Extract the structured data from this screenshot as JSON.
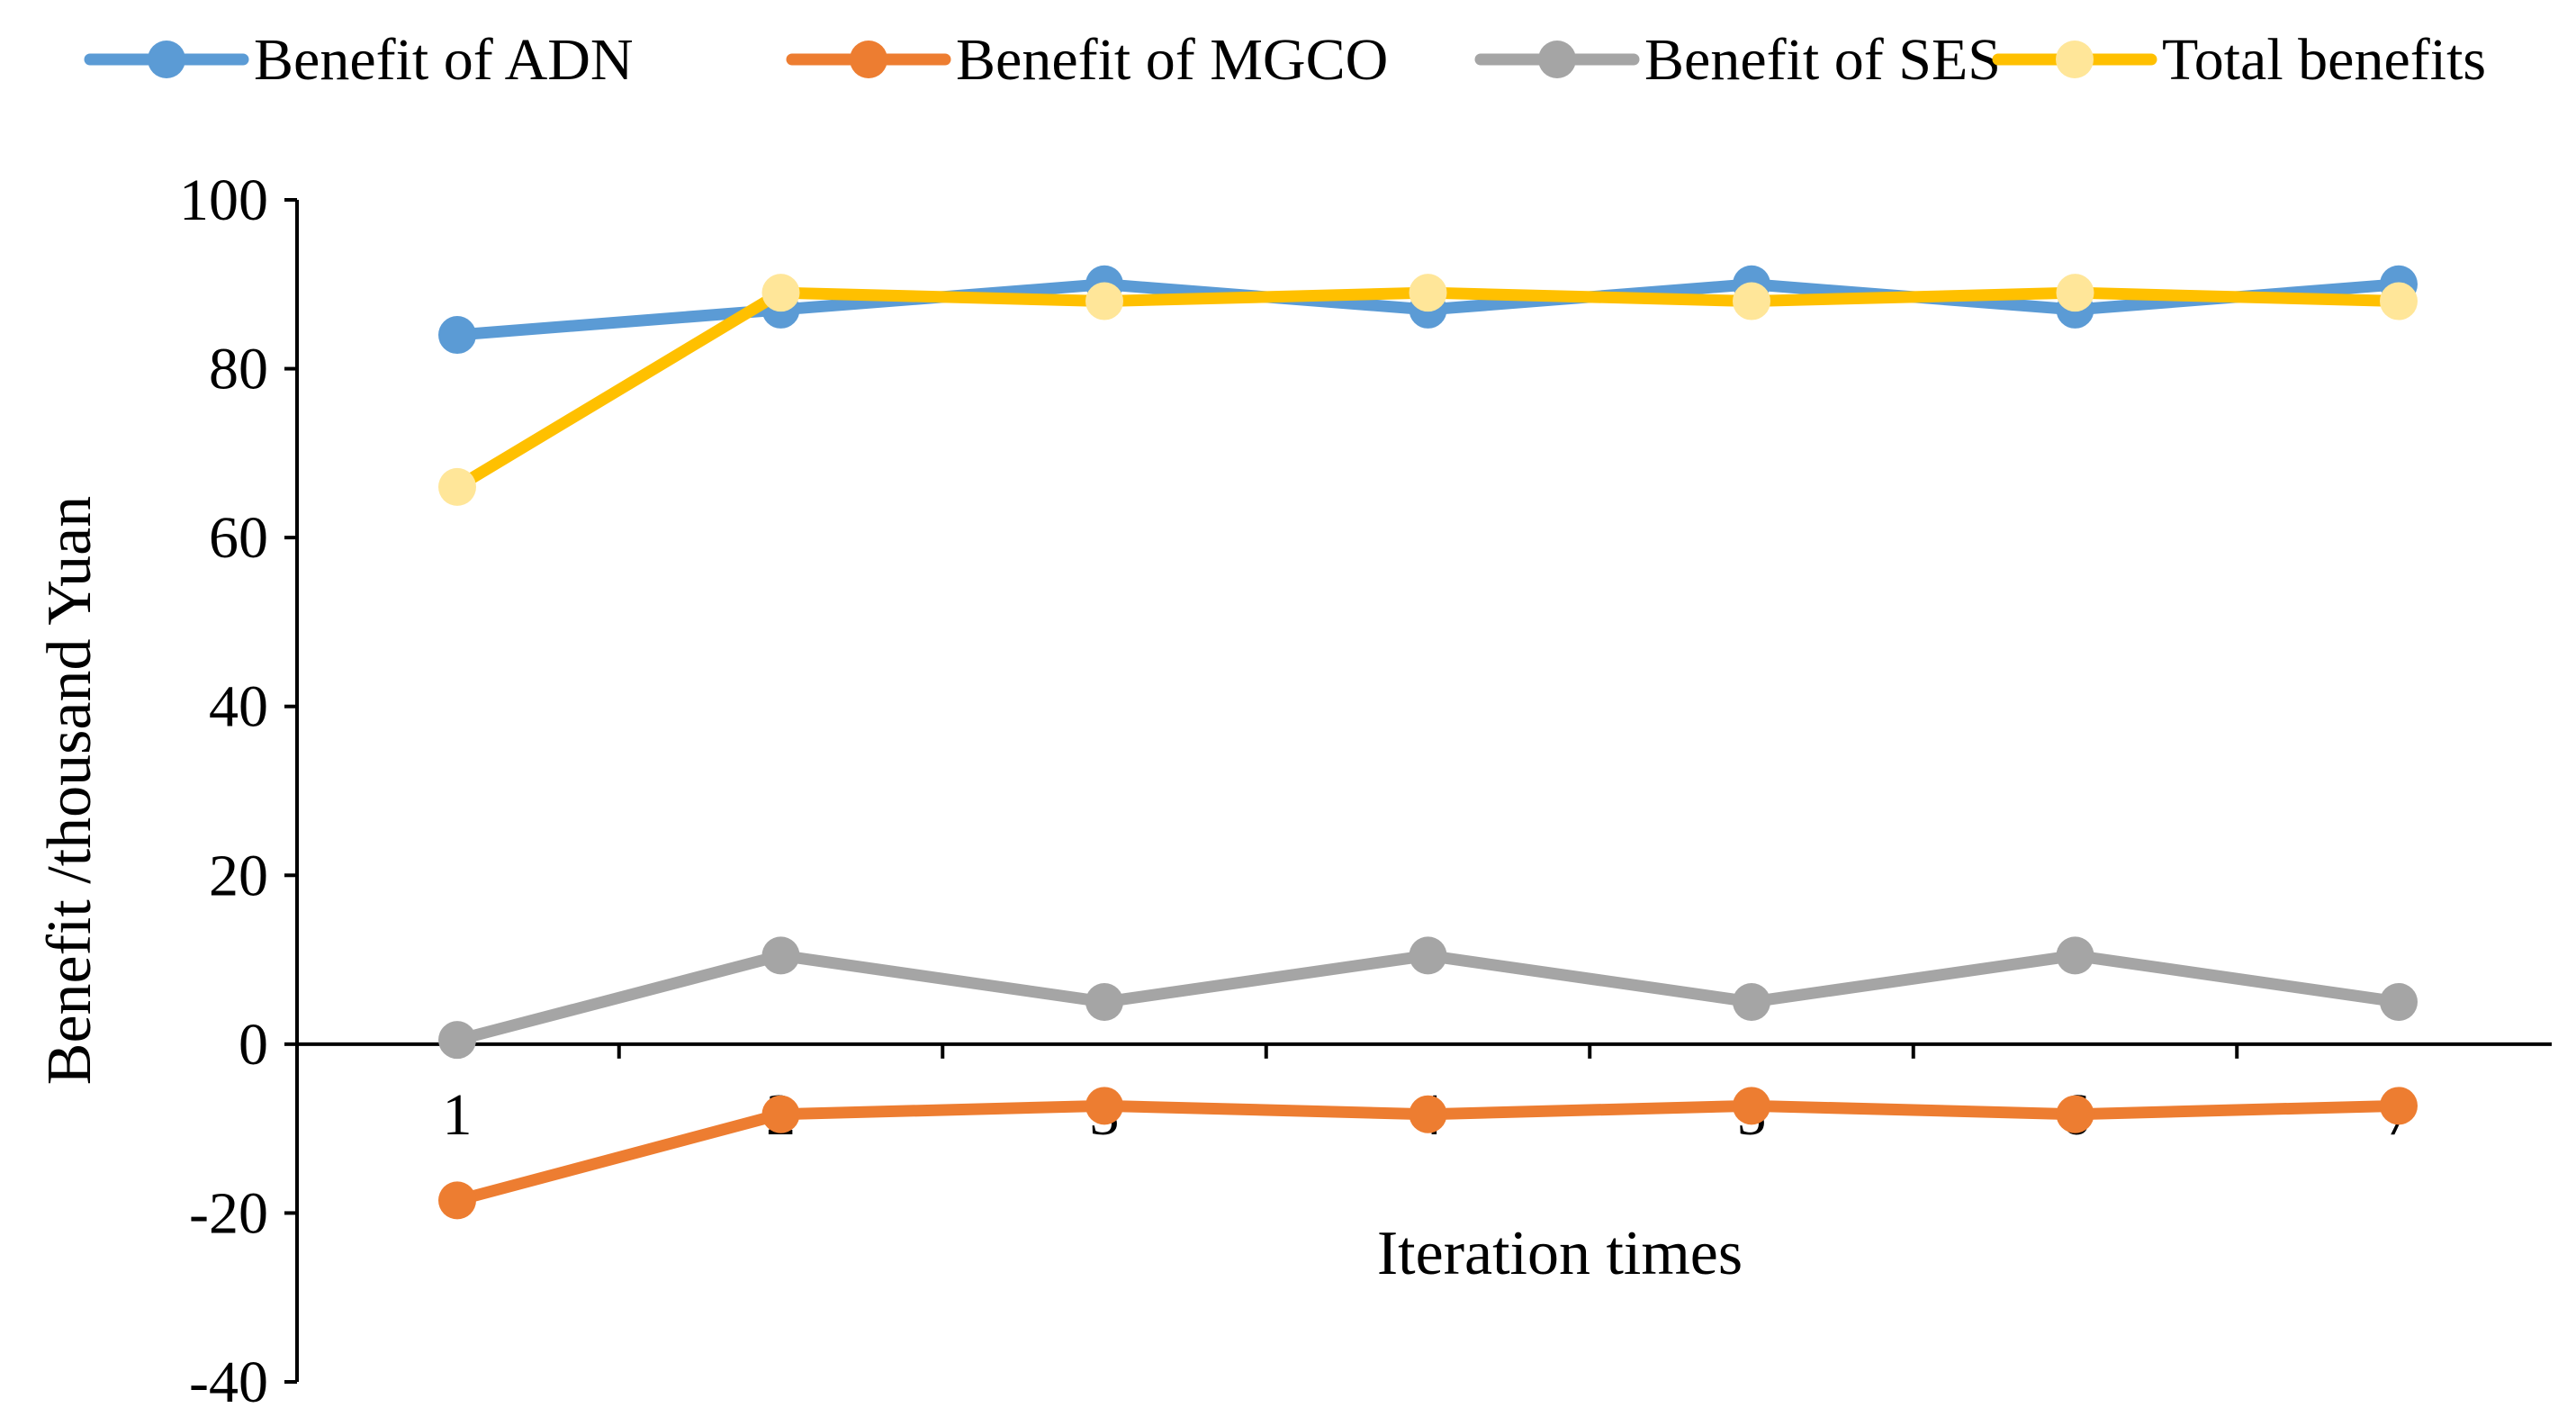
{
  "chart_data": {
    "type": "line",
    "title": "",
    "xlabel": "Iteration times",
    "ylabel": "Benefit /thousand Yuan",
    "categories": [
      "1",
      "2",
      "3",
      "4",
      "5",
      "6",
      "7"
    ],
    "ylim": [
      -40,
      100
    ],
    "yticks": [
      -40,
      -20,
      0,
      20,
      40,
      60,
      80,
      100
    ],
    "ytick_labels": [
      "-40",
      "-20",
      "0",
      "20",
      "40",
      "60",
      "80",
      "100"
    ],
    "grid": false,
    "legend_position": "top",
    "series": [
      {
        "name": "Benefit of ADN",
        "color": "#5B9BD5",
        "marker_color": "#5B9BD5",
        "values": [
          84.0,
          87.0,
          90.0,
          87.0,
          90.0,
          87.0,
          90.0
        ]
      },
      {
        "name": "Benefit of MGCO",
        "color": "#ED7D31",
        "marker_color": "#ED7D31",
        "values": [
          -18.5,
          -8.3,
          -7.3,
          -8.3,
          -7.3,
          -8.3,
          -7.3
        ]
      },
      {
        "name": "Benefit of SES",
        "color": "#A5A5A5",
        "marker_color": "#A5A5A5",
        "values": [
          0.5,
          10.5,
          5.0,
          10.5,
          5.0,
          10.5,
          5.0
        ]
      },
      {
        "name": "Total benefits",
        "color": "#FFC000",
        "marker_color": "#FFE699",
        "values": [
          66.0,
          89.0,
          88.0,
          89.0,
          88.0,
          89.0,
          88.0
        ]
      }
    ]
  }
}
